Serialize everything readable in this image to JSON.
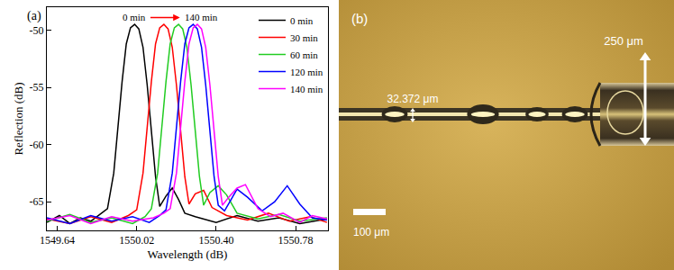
{
  "chart_data": {
    "type": "line",
    "label": "(a)",
    "xlabel": "Wavelength (dB)",
    "ylabel": "Reflection (dB)",
    "xlim": [
      1549.59,
      1550.935
    ],
    "xticks": [
      1549.64,
      1550.02,
      {
        "value": 1550.4,
        "label": "1550.40"
      },
      1550.78
    ],
    "ylim": [
      -67.5,
      -48
    ],
    "yticks": [
      -65,
      -60,
      -55,
      -50
    ],
    "grid": false,
    "legend": "upper right",
    "annotations": [
      {
        "text": "0 min",
        "x": 1550.01,
        "y": -48.9
      },
      {
        "text": "140 min",
        "x": 1550.33,
        "y": -48.9
      }
    ],
    "series": [
      {
        "name": "0 min",
        "color": "#000000",
        "x": [
          1549.59,
          1549.65,
          1549.7,
          1549.75,
          1549.8,
          1549.85,
          1549.88,
          1549.91,
          1549.93,
          1549.95,
          1549.97,
          1549.99,
          1550.01,
          1550.03,
          1550.05,
          1550.07,
          1550.09,
          1550.11,
          1550.13,
          1550.16,
          1550.19,
          1550.22,
          1550.25,
          1550.3,
          1550.4,
          1550.5,
          1550.6,
          1550.7,
          1550.8,
          1550.93
        ],
        "values": [
          -66.8,
          -66.2,
          -66.9,
          -66.4,
          -66.7,
          -66.0,
          -65.6,
          -62.5,
          -58.5,
          -54.5,
          -51.2,
          -49.8,
          -49.5,
          -49.9,
          -51.5,
          -54.8,
          -58.8,
          -62.8,
          -65.4,
          -64.5,
          -63.8,
          -64.8,
          -66.0,
          -66.3,
          -66.8,
          -66.2,
          -66.7,
          -66.4,
          -66.9,
          -66.5
        ]
      },
      {
        "name": "30 min",
        "color": "#ff0000",
        "x": [
          1549.59,
          1549.7,
          1549.8,
          1549.9,
          1549.98,
          1550.02,
          1550.05,
          1550.07,
          1550.09,
          1550.11,
          1550.13,
          1550.15,
          1550.17,
          1550.19,
          1550.21,
          1550.23,
          1550.25,
          1550.27,
          1550.3,
          1550.34,
          1550.38,
          1550.45,
          1550.55,
          1550.65,
          1550.75,
          1550.85,
          1550.93
        ],
        "values": [
          -66.5,
          -66.9,
          -66.3,
          -66.8,
          -66.2,
          -65.7,
          -62.5,
          -58.5,
          -54.5,
          -51.2,
          -49.8,
          -49.5,
          -49.9,
          -51.5,
          -54.8,
          -58.8,
          -62.8,
          -65.2,
          -64.3,
          -64.0,
          -65.5,
          -66.2,
          -66.6,
          -66.0,
          -66.7,
          -66.3,
          -66.8
        ]
      },
      {
        "name": "60 min",
        "color": "#22cc22",
        "x": [
          1549.59,
          1549.7,
          1549.8,
          1549.9,
          1550.0,
          1550.06,
          1550.09,
          1550.12,
          1550.14,
          1550.16,
          1550.18,
          1550.2,
          1550.22,
          1550.24,
          1550.26,
          1550.28,
          1550.3,
          1550.32,
          1550.34,
          1550.37,
          1550.41,
          1550.45,
          1550.5,
          1550.6,
          1550.7,
          1550.8,
          1550.93
        ],
        "values": [
          -66.7,
          -66.1,
          -66.8,
          -66.4,
          -66.9,
          -66.3,
          -65.6,
          -62.5,
          -58.5,
          -54.5,
          -51.2,
          -49.8,
          -49.5,
          -49.9,
          -51.5,
          -54.8,
          -58.8,
          -62.8,
          -65.3,
          -64.2,
          -63.6,
          -64.4,
          -66.0,
          -66.5,
          -66.1,
          -66.7,
          -66.4
        ]
      },
      {
        "name": "120 min",
        "color": "#0000ff",
        "x": [
          1549.59,
          1549.7,
          1549.8,
          1549.9,
          1550.0,
          1550.08,
          1550.13,
          1550.16,
          1550.19,
          1550.21,
          1550.23,
          1550.25,
          1550.27,
          1550.29,
          1550.31,
          1550.33,
          1550.35,
          1550.37,
          1550.39,
          1550.41,
          1550.44,
          1550.5,
          1550.55,
          1550.62,
          1550.68,
          1550.74,
          1550.8,
          1550.86,
          1550.93
        ],
        "values": [
          -66.4,
          -66.9,
          -66.2,
          -66.7,
          -66.3,
          -66.8,
          -66.2,
          -65.7,
          -62.5,
          -58.5,
          -54.5,
          -51.2,
          -49.8,
          -49.5,
          -49.9,
          -51.5,
          -54.8,
          -58.8,
          -62.8,
          -65.3,
          -65.8,
          -63.9,
          -64.6,
          -65.8,
          -65.0,
          -63.6,
          -65.2,
          -66.4,
          -66.6
        ]
      },
      {
        "name": "140 min",
        "color": "#ff00ff",
        "x": [
          1549.59,
          1549.7,
          1549.8,
          1549.9,
          1550.0,
          1550.1,
          1550.15,
          1550.18,
          1550.21,
          1550.23,
          1550.25,
          1550.27,
          1550.29,
          1550.31,
          1550.33,
          1550.35,
          1550.37,
          1550.39,
          1550.41,
          1550.43,
          1550.46,
          1550.5,
          1550.54,
          1550.6,
          1550.66,
          1550.72,
          1550.8,
          1550.86,
          1550.93
        ],
        "values": [
          -66.6,
          -66.2,
          -66.9,
          -66.3,
          -66.7,
          -66.4,
          -66.0,
          -65.6,
          -62.5,
          -58.5,
          -54.5,
          -51.2,
          -49.8,
          -49.5,
          -49.9,
          -51.5,
          -54.8,
          -58.8,
          -62.8,
          -65.3,
          -64.6,
          -63.8,
          -63.5,
          -65.6,
          -66.3,
          -66.0,
          -66.8,
          -66.2,
          -66.5
        ]
      }
    ]
  },
  "image": {
    "label": "(b)",
    "fiber_diameter": "32.372 μm",
    "capillary_diameter": "250 μm",
    "scale_bar": "100 μm"
  }
}
